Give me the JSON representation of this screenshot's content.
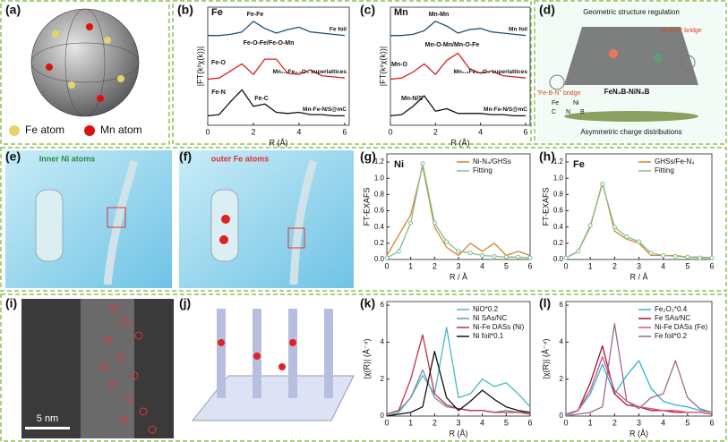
{
  "figure": {
    "panel_labels": [
      "(a)",
      "(b)",
      "(c)",
      "(d)",
      "(e)",
      "(f)",
      "(g)",
      "(h)",
      "(i)",
      "(j)",
      "(k)",
      "(l)"
    ],
    "a": {
      "legend": [
        "Fe atom",
        "Mn atom"
      ]
    },
    "d": {
      "title": "Geometric structure regulation",
      "bridges": [
        "\"Ni-B-N\" bridge",
        "\"Fe-B-N\" bridge"
      ],
      "formula": "FeN₄B-NiN₄B",
      "elements": [
        "Fe",
        "Ni",
        "C",
        "N",
        "B"
      ],
      "caption": "Asymmetric charge distributions"
    },
    "e": {
      "caption": "Inner Ni atoms"
    },
    "f": {
      "caption": "outer Fe atoms"
    },
    "i": {
      "scale": "5 nm"
    }
  },
  "chart_data": [
    {
      "type": "line",
      "title": "Fe",
      "x": [
        0,
        0.5,
        1,
        1.5,
        2,
        2.5,
        3,
        3.5,
        4,
        4.5,
        5,
        5.5,
        6
      ],
      "xlim": [
        0,
        6.2
      ],
      "xticks": [
        0,
        2,
        4,
        6
      ],
      "ylim": [
        0,
        10
      ],
      "xlabel": "R (Å)",
      "ylabel": "|FT(k²χ(k))|",
      "series": [
        {
          "name": "Fe foil",
          "color": "#1f4e79",
          "values": [
            7.6,
            7.6,
            7.7,
            7.9,
            8.8,
            8.2,
            7.8,
            8.1,
            8.3,
            7.9,
            7.8,
            7.7,
            7.6
          ]
        },
        {
          "name": "Mn₀.₆Fe₂.₄O₄ superlattices",
          "color": "#d62020",
          "values": [
            3.9,
            4.0,
            4.6,
            5.2,
            4.3,
            5.6,
            5.6,
            4.4,
            4.3,
            4.7,
            4.2,
            4.1,
            4.0
          ]
        },
        {
          "name": "Mn-Fe-N/S@mC",
          "color": "#111111",
          "values": [
            0.8,
            0.9,
            2.0,
            3.0,
            1.6,
            1.8,
            1.1,
            1.0,
            1.1,
            0.9,
            0.9,
            0.8,
            0.8
          ]
        }
      ],
      "annotations": [
        "Fe-Fe",
        "Fe-O-Fe/Fe-O-Mn",
        "Fe-O",
        "Fe-N",
        "Fe-C"
      ]
    },
    {
      "type": "line",
      "title": "Mn",
      "x": [
        0,
        0.5,
        1,
        1.5,
        2,
        2.5,
        3,
        3.5,
        4,
        4.5,
        5,
        5.5,
        6
      ],
      "xlim": [
        0,
        6.2
      ],
      "xticks": [
        0,
        2,
        4,
        6
      ],
      "ylim": [
        0,
        10
      ],
      "xlabel": "R (Å)",
      "ylabel": "|FT(k²χ(k))|",
      "series": [
        {
          "name": "Mn foil",
          "color": "#1f4e79",
          "values": [
            7.6,
            7.6,
            7.7,
            8.0,
            8.8,
            8.4,
            7.8,
            8.1,
            8.2,
            7.9,
            7.8,
            7.7,
            7.6
          ]
        },
        {
          "name": "Mn₀.₆Fe₂.₄O₄ superlattices",
          "color": "#d62020",
          "values": [
            3.9,
            4.0,
            4.5,
            5.2,
            4.3,
            5.5,
            6.1,
            4.8,
            4.4,
            4.6,
            4.2,
            4.1,
            4.0
          ]
        },
        {
          "name": "Mn-Fe-N/S@mC",
          "color": "#111111",
          "values": [
            0.8,
            0.9,
            1.6,
            2.5,
            1.2,
            1.4,
            1.0,
            1.0,
            1.0,
            0.9,
            0.9,
            0.8,
            0.8
          ]
        }
      ],
      "annotations": [
        "Mn-Mn",
        "Mn-O-Mn/Mn-O-Fe",
        "Mn-O",
        "Mn-N/S"
      ]
    },
    {
      "type": "line",
      "title": "Ni",
      "x": [
        0,
        0.5,
        1,
        1.5,
        2,
        2.5,
        3,
        3.5,
        4,
        4.5,
        5,
        5.5,
        6
      ],
      "xlim": [
        0,
        6
      ],
      "xticks": [
        0,
        1,
        2,
        3,
        4,
        5,
        6
      ],
      "ylim": [
        0,
        1.3
      ],
      "yticks": [
        {
          "value": 0,
          "label": "0.0"
        },
        0.2,
        0.4,
        0.6,
        0.8,
        {
          "value": 1,
          "label": "1.0"
        },
        1.2
      ],
      "xlabel": "R / Å",
      "ylabel": "FT-EXAFS",
      "legend": "upper right",
      "series": [
        {
          "name": "Ni-N₄/GHSs",
          "color": "#d9822b",
          "values": [
            0.05,
            0.3,
            0.55,
            1.15,
            0.4,
            0.15,
            0.05,
            0.2,
            0.1,
            0.2,
            0.05,
            0.1,
            0.05
          ]
        },
        {
          "name": "Fitting",
          "color": "#7fbf8f",
          "marker": "o",
          "values": [
            0.02,
            0.1,
            0.45,
            1.18,
            0.45,
            0.22,
            0.1,
            0.08,
            0.05,
            0.04,
            0.03,
            0.03,
            0.02
          ]
        }
      ]
    },
    {
      "type": "line",
      "title": "Fe",
      "x": [
        0,
        0.5,
        1,
        1.5,
        2,
        2.5,
        3,
        3.5,
        4,
        4.5,
        5,
        5.5,
        6
      ],
      "xlim": [
        0,
        6
      ],
      "xticks": [
        0,
        1,
        2,
        3,
        4,
        5,
        6
      ],
      "ylim": [
        0,
        1.3
      ],
      "yticks": [
        {
          "value": 0,
          "label": "0.0"
        },
        0.2,
        0.4,
        0.6,
        0.8,
        {
          "value": 1,
          "label": "1.0"
        },
        1.2
      ],
      "xlabel": "R / Å",
      "ylabel": "FT-EXAFS",
      "legend": "upper right",
      "series": [
        {
          "name": "GHSs/Fe-N₄",
          "color": "#d9822b",
          "values": [
            0.02,
            0.1,
            0.4,
            0.95,
            0.35,
            0.25,
            0.2,
            0.05,
            0.05,
            0.05,
            0.03,
            0.03,
            0.02
          ]
        },
        {
          "name": "Fitting",
          "color": "#7fbf8f",
          "marker": "o",
          "values": [
            0.02,
            0.1,
            0.42,
            0.93,
            0.4,
            0.28,
            0.22,
            0.08,
            0.05,
            0.04,
            0.03,
            0.02,
            0.02
          ]
        }
      ]
    },
    {
      "type": "line",
      "x": [
        0,
        0.5,
        1,
        1.5,
        2,
        2.5,
        3,
        3.5,
        4,
        4.5,
        5,
        5.5,
        6
      ],
      "xlim": [
        0,
        6
      ],
      "xticks": [
        0,
        1,
        2,
        3,
        4,
        5,
        6
      ],
      "ylim": [
        0,
        6.2
      ],
      "yticks": [
        0,
        2,
        4,
        6
      ],
      "xlabel": "R (Å)",
      "ylabel": "|χ(R)| (Å⁻⁴)",
      "legend": "upper right",
      "series": [
        {
          "name": "NiO*0.2",
          "color": "#4ab8c0",
          "values": [
            0,
            0.2,
            1.0,
            2.2,
            1.2,
            4.8,
            1.0,
            1.2,
            2.0,
            1.6,
            1.8,
            1.2,
            0.5
          ]
        },
        {
          "name": "Ni SAs/NC",
          "color": "#7a8fa6",
          "values": [
            0.1,
            0.3,
            1.0,
            2.5,
            1.0,
            0.5,
            0.4,
            0.3,
            0.3,
            0.2,
            0.3,
            0.2,
            0.2
          ]
        },
        {
          "name": "Ni-Fe DASs (Ni)",
          "color": "#c0304a",
          "values": [
            0.1,
            0.3,
            2.0,
            4.4,
            1.2,
            0.6,
            0.4,
            0.3,
            0.3,
            0.2,
            0.2,
            0.2,
            0.1
          ]
        },
        {
          "name": "Ni foil*0.1",
          "color": "#111111",
          "values": [
            0,
            0.1,
            0.2,
            0.5,
            3.5,
            1.0,
            0.3,
            0.8,
            1.4,
            0.9,
            0.5,
            0.3,
            0.2
          ]
        }
      ]
    },
    {
      "type": "line",
      "x": [
        0,
        0.5,
        1,
        1.5,
        2,
        2.5,
        3,
        3.5,
        4,
        4.5,
        5,
        5.5,
        6
      ],
      "xlim": [
        0,
        6
      ],
      "xticks": [
        0,
        1,
        2,
        3,
        4,
        5,
        6
      ],
      "ylim": [
        0,
        6.2
      ],
      "yticks": [
        0,
        2,
        4,
        6
      ],
      "xlabel": "R (Å)",
      "ylabel": "|χ(R)| (Å⁻⁴)",
      "legend": "upper right",
      "series": [
        {
          "name": "Fe₂O₃*0.4",
          "color": "#2cb5d0",
          "values": [
            0,
            0.3,
            1.2,
            2.8,
            1.2,
            2.2,
            3.0,
            1.5,
            0.8,
            0.6,
            0.5,
            0.3,
            0.2
          ]
        },
        {
          "name": "Fe SAs/NC",
          "color": "#a01830",
          "values": [
            0.1,
            0.3,
            1.8,
            3.8,
            1.2,
            0.6,
            0.5,
            0.3,
            0.3,
            0.2,
            0.2,
            0.2,
            0.1
          ]
        },
        {
          "name": "Ni-Fe DASs (Fe)",
          "color": "#e0507a",
          "values": [
            0.1,
            0.3,
            1.4,
            3.2,
            1.4,
            0.8,
            0.5,
            0.4,
            0.3,
            0.3,
            0.2,
            0.2,
            0.1
          ]
        },
        {
          "name": "Fe foil*0.2",
          "color": "#9a6a8a",
          "values": [
            0,
            0.1,
            0.2,
            0.5,
            5.0,
            0.8,
            0.4,
            1.0,
            1.2,
            3.0,
            1.0,
            0.4,
            0.2
          ]
        }
      ]
    }
  ]
}
